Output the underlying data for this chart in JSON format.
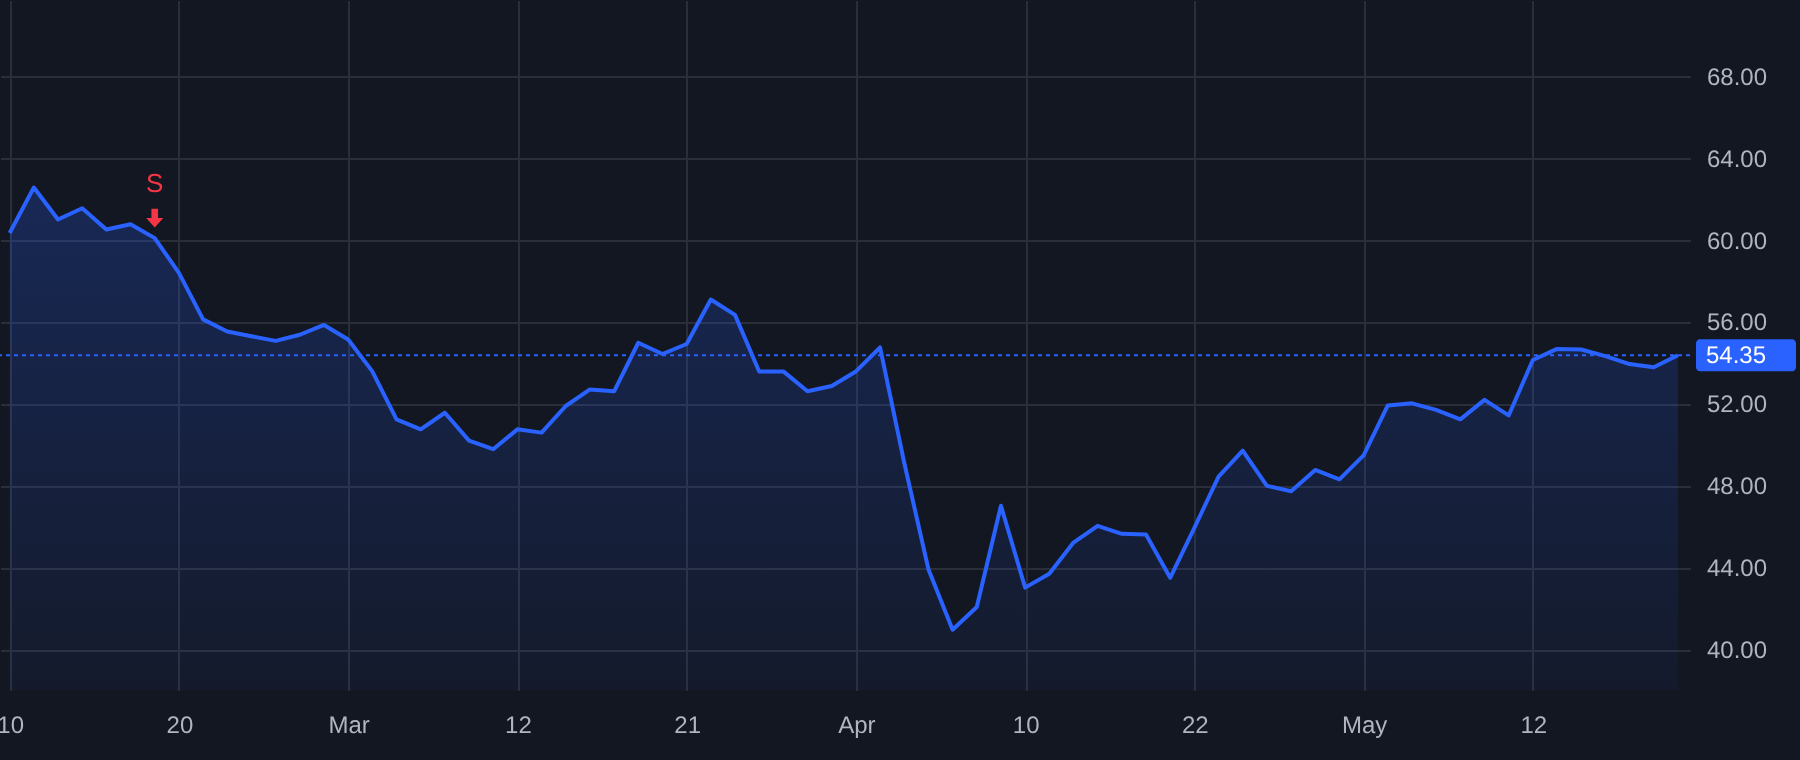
{
  "chart_data": {
    "type": "area",
    "categories": [
      "10",
      null,
      null,
      null,
      null,
      null,
      null,
      "20",
      null,
      null,
      null,
      null,
      null,
      null,
      "Mar",
      null,
      null,
      null,
      null,
      null,
      null,
      "12",
      null,
      null,
      null,
      null,
      null,
      null,
      "21",
      null,
      null,
      null,
      null,
      null,
      null,
      "Apr",
      null,
      null,
      null,
      null,
      null,
      null,
      "10",
      null,
      null,
      null,
      null,
      null,
      null,
      "22",
      null,
      null,
      null,
      null,
      null,
      null,
      "May",
      null,
      null,
      null,
      null,
      null,
      null,
      "12",
      null,
      null,
      null,
      null,
      null,
      null
    ],
    "series": [
      {
        "color": "#2962ff",
        "values": [
          60.32,
          62.54,
          60.98,
          61.53,
          60.49,
          60.75,
          60.07,
          58.37,
          56.1,
          55.51,
          55.28,
          55.05,
          55.35,
          55.83,
          55.12,
          53.56,
          51.22,
          50.73,
          51.54,
          50.18,
          49.76,
          50.73,
          50.57,
          51.87,
          52.68,
          52.59,
          54.96,
          54.41,
          54.9,
          57.07,
          56.32,
          53.56,
          53.56,
          52.59,
          52.85,
          53.56,
          54.73,
          49.1,
          43.9,
          40.94,
          42.05,
          47.0,
          43.0,
          43.68,
          45.2,
          46.02,
          45.63,
          45.59,
          43.48,
          45.92,
          48.42,
          49.69,
          47.97,
          47.71,
          48.75,
          48.29,
          49.46,
          51.9,
          52.0,
          51.68,
          51.22,
          52.17,
          51.41,
          54.12,
          54.66,
          54.63,
          54.31,
          53.92,
          53.76,
          54.35
        ]
      }
    ],
    "ylim": [
      38,
      71.7
    ],
    "yticks": [
      {
        "value": 40,
        "label": "40.00"
      },
      {
        "value": 44,
        "label": "44.00"
      },
      {
        "value": 48,
        "label": "48.00"
      },
      {
        "value": 52,
        "label": "52.00"
      },
      {
        "value": 56,
        "label": "56.00"
      },
      {
        "value": 60,
        "label": "60.00"
      },
      {
        "value": 64,
        "label": "64.00"
      },
      {
        "value": 68,
        "label": "68.00"
      }
    ],
    "grid": true,
    "ref_lines": [
      {
        "axis": "y",
        "value": 54.35,
        "label": "54.35",
        "color": "#2962ff",
        "line_style": "dotted"
      }
    ],
    "annotations": [
      {
        "text": "S",
        "y": 60.07
      }
    ]
  }
}
